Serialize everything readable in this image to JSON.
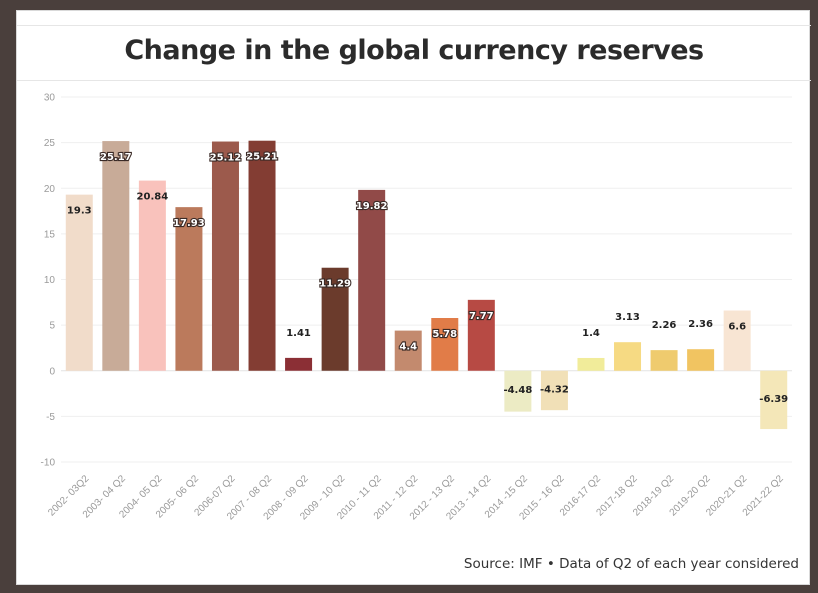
{
  "source_note": "Source: IMF • Data of Q2 of each year considered",
  "chart_data": {
    "type": "bar",
    "title": "Change in the global currency reserves",
    "xlabel": "",
    "ylabel": "",
    "ylim": [
      -10,
      30
    ],
    "yticks": [
      30,
      25,
      20,
      15,
      10,
      5,
      0,
      -5,
      -10
    ],
    "grid": true,
    "legend": "none",
    "categories": [
      "2002- 03Q2",
      "2003- 04 Q2",
      "2004- 05 Q2",
      "2005- 06 Q2",
      "2006-07 Q2",
      "2007 - 08 Q2",
      "2008 - 09 Q2",
      "2009 - 10 Q2",
      "2010 - 11 Q2",
      "2011 - 12 Q2",
      "2012 - 13 Q2",
      "2013 - 14 Q2",
      "2014 -15 Q2",
      "2015 - 16 Q2",
      "2016-17 Q2",
      "2017-18 Q2",
      "2018-19 Q2",
      "2019-20 Q2",
      "2020-21 Q2",
      "2021-22 Q2"
    ],
    "values": [
      19.3,
      25.17,
      20.84,
      17.93,
      25.12,
      25.21,
      1.41,
      11.29,
      19.82,
      4.4,
      5.78,
      7.77,
      -4.48,
      -4.32,
      1.4,
      3.13,
      2.26,
      2.36,
      6.6,
      -6.39
    ],
    "value_labels": [
      "19.3",
      "25.17",
      "20.84",
      "17.93",
      "25.12",
      "25.21",
      "1.41",
      "11.29",
      "19.82",
      "4.4",
      "5.78",
      "7.77",
      "-4.48",
      "-4.32",
      "1.4",
      "3.13",
      "2.26",
      "2.36",
      "6.6",
      "-6.39"
    ],
    "colors": [
      "#f1dcca",
      "#c8ab98",
      "#f9c2bc",
      "#bb7a5c",
      "#9c5a4c",
      "#833d33",
      "#8b2f35",
      "#6b3b2c",
      "#914a48",
      "#c38a6e",
      "#e17c48",
      "#b74a44",
      "#ecebc4",
      "#f1e0b7",
      "#f1ec9a",
      "#f6da83",
      "#efcb6e",
      "#f1c461",
      "#f8e5d3",
      "#f4e7b8"
    ],
    "label_styles": [
      "dark-on-bar",
      "light-box",
      "dark-on-bar",
      "light-box",
      "light-box",
      "light-box",
      "dark-above",
      "light-box",
      "light-box",
      "light-box",
      "light-box",
      "light-box",
      "dark-on-bar",
      "dark-on-bar",
      "dark-above",
      "dark-above",
      "dark-above",
      "dark-above",
      "dark-on-bar",
      "dark-on-bar"
    ]
  }
}
